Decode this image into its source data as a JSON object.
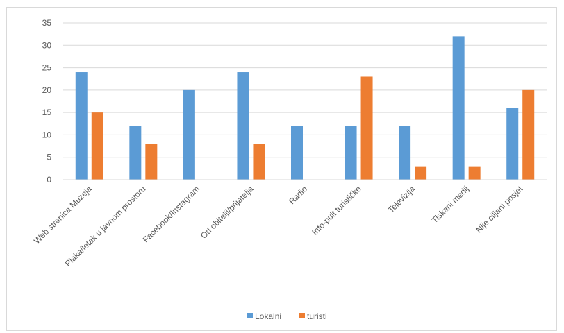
{
  "chart_data": {
    "type": "bar",
    "categories": [
      "Web stranica Muzeja",
      "Plaka/letak u javnom prostoru",
      "Facebook/Instagram",
      "Od obitelji/prijatelja",
      "Radio",
      "Info-pult turističke",
      "Televizija",
      "Tiskani medij",
      "Nije ciljani posjet"
    ],
    "series": [
      {
        "name": "Lokalni",
        "color": "#5b9bd5",
        "values": [
          24,
          12,
          20,
          24,
          12,
          12,
          12,
          32,
          16
        ]
      },
      {
        "name": "turisti",
        "color": "#ed7d31",
        "values": [
          15,
          8,
          0,
          8,
          0,
          23,
          3,
          3,
          20
        ]
      }
    ],
    "title": "",
    "xlabel": "",
    "ylabel": "",
    "ylim": [
      0,
      35
    ],
    "yticks": [
      0,
      5,
      10,
      15,
      20,
      25,
      30,
      35
    ],
    "grid": true,
    "legend_position": "bottom"
  }
}
